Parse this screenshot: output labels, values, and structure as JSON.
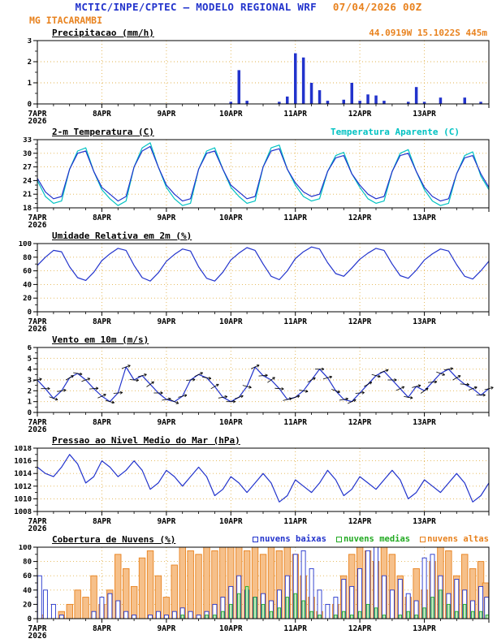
{
  "header": {
    "title": "MCTIC/INPE/CPTEC — MODELO REGIONAL WRF",
    "run_datetime": "07/04/2026 00Z",
    "station": "MG ITACARAMBI",
    "location": "44.0919W 15.1022S 445m"
  },
  "colors": {
    "model_title": "#2233cc",
    "accent_orange": "#e8821e",
    "line_blue": "#2233cc",
    "line_cyan": "#00c2c2",
    "cloud_green": "#22aa22",
    "grid_dotted": "#e2b24e",
    "barb_black": "#000000"
  },
  "x_axis": {
    "hours_total": 168,
    "minor_step": 6,
    "ticks": [
      {
        "hour": 0,
        "label": "7APR",
        "sublabel": "2026"
      },
      {
        "hour": 24,
        "label": "8APR"
      },
      {
        "hour": 48,
        "label": "9APR"
      },
      {
        "hour": 72,
        "label": "10APR"
      },
      {
        "hour": 96,
        "label": "11APR"
      },
      {
        "hour": 120,
        "label": "12APR"
      },
      {
        "hour": 144,
        "label": "13APR"
      }
    ]
  },
  "chart_data": [
    {
      "title": "Precipitacao (mm/h)",
      "type": "bar",
      "ylim": [
        0,
        3
      ],
      "yticks": [
        0,
        1,
        2,
        3
      ],
      "yminor": 0.5,
      "step_hours": 3,
      "series": [
        {
          "name": "precipitacao",
          "color": "#2233cc",
          "values": [
            0,
            0,
            0,
            0,
            0,
            0,
            0,
            0,
            0,
            0,
            0,
            0,
            0,
            0,
            0,
            0,
            0,
            0,
            0,
            0,
            0,
            0,
            0,
            0,
            0.1,
            1.6,
            0.15,
            0,
            0,
            0,
            0.1,
            0.35,
            2.4,
            2.2,
            1.0,
            0.65,
            0.15,
            0,
            0.2,
            1.0,
            0.15,
            0.45,
            0.4,
            0.15,
            0,
            0,
            0.1,
            0.8,
            0.1,
            0,
            0.3,
            0,
            0,
            0.3,
            0,
            0.1,
            0
          ]
        }
      ]
    },
    {
      "title": "2-m Temperatura (C)",
      "type": "line",
      "ylim": [
        18,
        33
      ],
      "yticks": [
        18,
        21,
        24,
        27,
        30,
        33
      ],
      "yminor": 1,
      "step_hours": 3,
      "legend": {
        "label": "Temperatura Aparente (C)",
        "color": "#00c2c2"
      },
      "series": [
        {
          "name": "temperatura-aparente",
          "color": "#00c2c2",
          "values": [
            24,
            20.5,
            19,
            19.5,
            26.5,
            30.5,
            31.2,
            26,
            22,
            20,
            18.5,
            19.5,
            27,
            31.2,
            32.3,
            27,
            22.5,
            20,
            18.5,
            19,
            26.5,
            30.5,
            31.2,
            26.5,
            22.5,
            20.5,
            19,
            19.5,
            27,
            31.2,
            31.8,
            26.5,
            23,
            20.5,
            19.5,
            20,
            26,
            29.5,
            30.2,
            25.5,
            22.5,
            20,
            19,
            19.5,
            26,
            30,
            30.8,
            26,
            22,
            19.5,
            18.5,
            19,
            25.5,
            29.5,
            30.3,
            25,
            22
          ]
        },
        {
          "name": "temperatura",
          "color": "#2233cc",
          "values": [
            24.5,
            21.5,
            20,
            20.5,
            26.5,
            30,
            30.5,
            26,
            22.5,
            21,
            19.5,
            20.5,
            27,
            30.5,
            31.5,
            27,
            23,
            21,
            19.5,
            20,
            26.5,
            30,
            30.5,
            26.5,
            23,
            21.5,
            20,
            20.5,
            27,
            30.5,
            31,
            26.5,
            23.5,
            21.5,
            20.5,
            21,
            26,
            29,
            29.5,
            25.5,
            23,
            21,
            20,
            20.5,
            26,
            29.5,
            30,
            26,
            22.5,
            20.5,
            19.5,
            20,
            25.5,
            29,
            29.5,
            25.5,
            22.5
          ]
        }
      ]
    },
    {
      "title": "Umidade Relativa em 2m (%)",
      "type": "line",
      "ylim": [
        0,
        100
      ],
      "yticks": [
        0,
        20,
        40,
        60,
        80,
        100
      ],
      "yminor": 10,
      "step_hours": 3,
      "series": [
        {
          "name": "umidade-relativa",
          "color": "#2233cc",
          "values": [
            68,
            80,
            90,
            88,
            66,
            50,
            46,
            58,
            75,
            85,
            93,
            90,
            68,
            50,
            45,
            57,
            74,
            84,
            92,
            89,
            66,
            49,
            45,
            58,
            76,
            86,
            94,
            90,
            70,
            52,
            47,
            60,
            78,
            88,
            95,
            92,
            72,
            56,
            52,
            64,
            77,
            86,
            93,
            90,
            70,
            53,
            49,
            61,
            76,
            85,
            92,
            89,
            69,
            52,
            48,
            60,
            74
          ]
        }
      ]
    },
    {
      "title": "Vento em 10m (m/s)",
      "type": "line",
      "ylim": [
        0,
        6
      ],
      "yticks": [
        0,
        1,
        2,
        3,
        4,
        5,
        6
      ],
      "yminor": 0.5,
      "step_hours": 3,
      "series": [
        {
          "name": "velocidade-vento",
          "color": "#2233cc",
          "values": [
            3.0,
            2.2,
            1.3,
            2.0,
            3.2,
            3.6,
            3.0,
            2.2,
            1.5,
            1.0,
            1.8,
            4.2,
            3.0,
            3.4,
            2.6,
            1.8,
            1.2,
            1.0,
            1.5,
            3.0,
            3.5,
            3.2,
            2.4,
            1.4,
            1.0,
            1.4,
            2.4,
            4.2,
            3.4,
            3.0,
            2.2,
            1.2,
            1.4,
            2.0,
            3.0,
            4.0,
            3.2,
            2.0,
            1.2,
            1.0,
            1.8,
            2.6,
            3.4,
            3.8,
            3.0,
            2.2,
            1.4,
            2.4,
            2.0,
            2.8,
            3.6,
            4.0,
            3.2,
            2.6,
            2.2,
            1.6,
            2.2
          ]
        }
      ],
      "barbs": {
        "name": "direcao-vento",
        "color": "#000000",
        "angles": [
          15,
          0,
          -20,
          10,
          30,
          -10,
          20,
          5,
          25,
          -15,
          5,
          20,
          -5,
          15,
          35,
          0,
          10,
          -25,
          15,
          5,
          25,
          -10,
          30,
          10,
          0,
          20,
          -15,
          25,
          5,
          35,
          -5,
          15,
          20,
          -10,
          30,
          0,
          15,
          -20,
          10,
          25,
          5,
          30,
          -15,
          20,
          0,
          25,
          -10,
          15,
          35,
          5,
          -20,
          10,
          30,
          -5,
          20,
          0,
          15
        ]
      }
    },
    {
      "title": "Pressao ao Nivel Medio do Mar (hPa)",
      "type": "line",
      "ylim": [
        1008,
        1018
      ],
      "yticks": [
        1008,
        1010,
        1012,
        1014,
        1016,
        1018
      ],
      "yminor": 1,
      "step_hours": 3,
      "series": [
        {
          "name": "pressao-nivel-mar",
          "color": "#2233cc",
          "values": [
            1015,
            1014,
            1013.5,
            1015,
            1017,
            1015.5,
            1012.5,
            1013.5,
            1016,
            1015,
            1013.5,
            1014.5,
            1016,
            1014.5,
            1011.5,
            1012.5,
            1014.5,
            1013.5,
            1012,
            1013.5,
            1015,
            1013.5,
            1010.5,
            1011.5,
            1013.5,
            1012.5,
            1011,
            1012.5,
            1014,
            1012.5,
            1009.5,
            1010.5,
            1013,
            1012,
            1011,
            1012.5,
            1014.5,
            1013,
            1010.5,
            1011.5,
            1013.5,
            1012.5,
            1011.5,
            1013,
            1014.5,
            1013,
            1010,
            1011,
            1013,
            1012,
            1011,
            1012.5,
            1014,
            1012.5,
            1009.5,
            1010.5,
            1012.5
          ]
        }
      ]
    },
    {
      "title": "Cobertura de Nuvens (%)",
      "type": "cloudbar",
      "ylim": [
        0,
        100
      ],
      "yticks": [
        0,
        20,
        40,
        60,
        80,
        100
      ],
      "yminor": 10,
      "step_hours": 3,
      "legend": [
        {
          "label": "nuvens baixas",
          "color": "#2233cc"
        },
        {
          "label": "nuvens medias",
          "color": "#22aa22"
        },
        {
          "label": "nuvens altas",
          "color": "#e8821e"
        }
      ],
      "series": [
        {
          "name": "nuvens-altas",
          "color": "#e8821e",
          "fill": "#f6c08a",
          "width": 7.5,
          "values": [
            5,
            0,
            0,
            10,
            20,
            40,
            30,
            60,
            20,
            40,
            90,
            70,
            45,
            85,
            95,
            60,
            30,
            75,
            100,
            95,
            90,
            100,
            95,
            100,
            100,
            100,
            95,
            100,
            90,
            100,
            95,
            100,
            90,
            60,
            30,
            10,
            0,
            20,
            60,
            90,
            100,
            95,
            80,
            100,
            90,
            60,
            30,
            70,
            40,
            80,
            100,
            95,
            60,
            90,
            70,
            80,
            50
          ]
        },
        {
          "name": "nuvens-baixas",
          "color": "#2233cc",
          "fill": "#ffffff",
          "width": 5,
          "values": [
            60,
            40,
            20,
            5,
            0,
            0,
            0,
            10,
            30,
            35,
            25,
            10,
            5,
            0,
            5,
            10,
            5,
            10,
            15,
            10,
            5,
            10,
            20,
            30,
            45,
            60,
            40,
            30,
            35,
            25,
            40,
            60,
            90,
            95,
            70,
            40,
            20,
            30,
            55,
            45,
            70,
            95,
            100,
            60,
            40,
            55,
            35,
            25,
            85,
            90,
            60,
            35,
            55,
            40,
            25,
            45,
            30
          ]
        },
        {
          "name": "nuvens-medias",
          "color": "#22aa22",
          "fill": "#bfe8bf",
          "width": 3.5,
          "values": [
            0,
            0,
            0,
            0,
            0,
            0,
            0,
            0,
            0,
            0,
            0,
            0,
            0,
            0,
            0,
            0,
            0,
            0,
            5,
            0,
            0,
            5,
            5,
            10,
            20,
            35,
            45,
            30,
            20,
            10,
            15,
            30,
            35,
            25,
            10,
            5,
            0,
            5,
            10,
            5,
            10,
            20,
            15,
            5,
            0,
            5,
            10,
            5,
            15,
            30,
            40,
            20,
            10,
            20,
            10,
            10,
            5
          ]
        }
      ]
    }
  ]
}
